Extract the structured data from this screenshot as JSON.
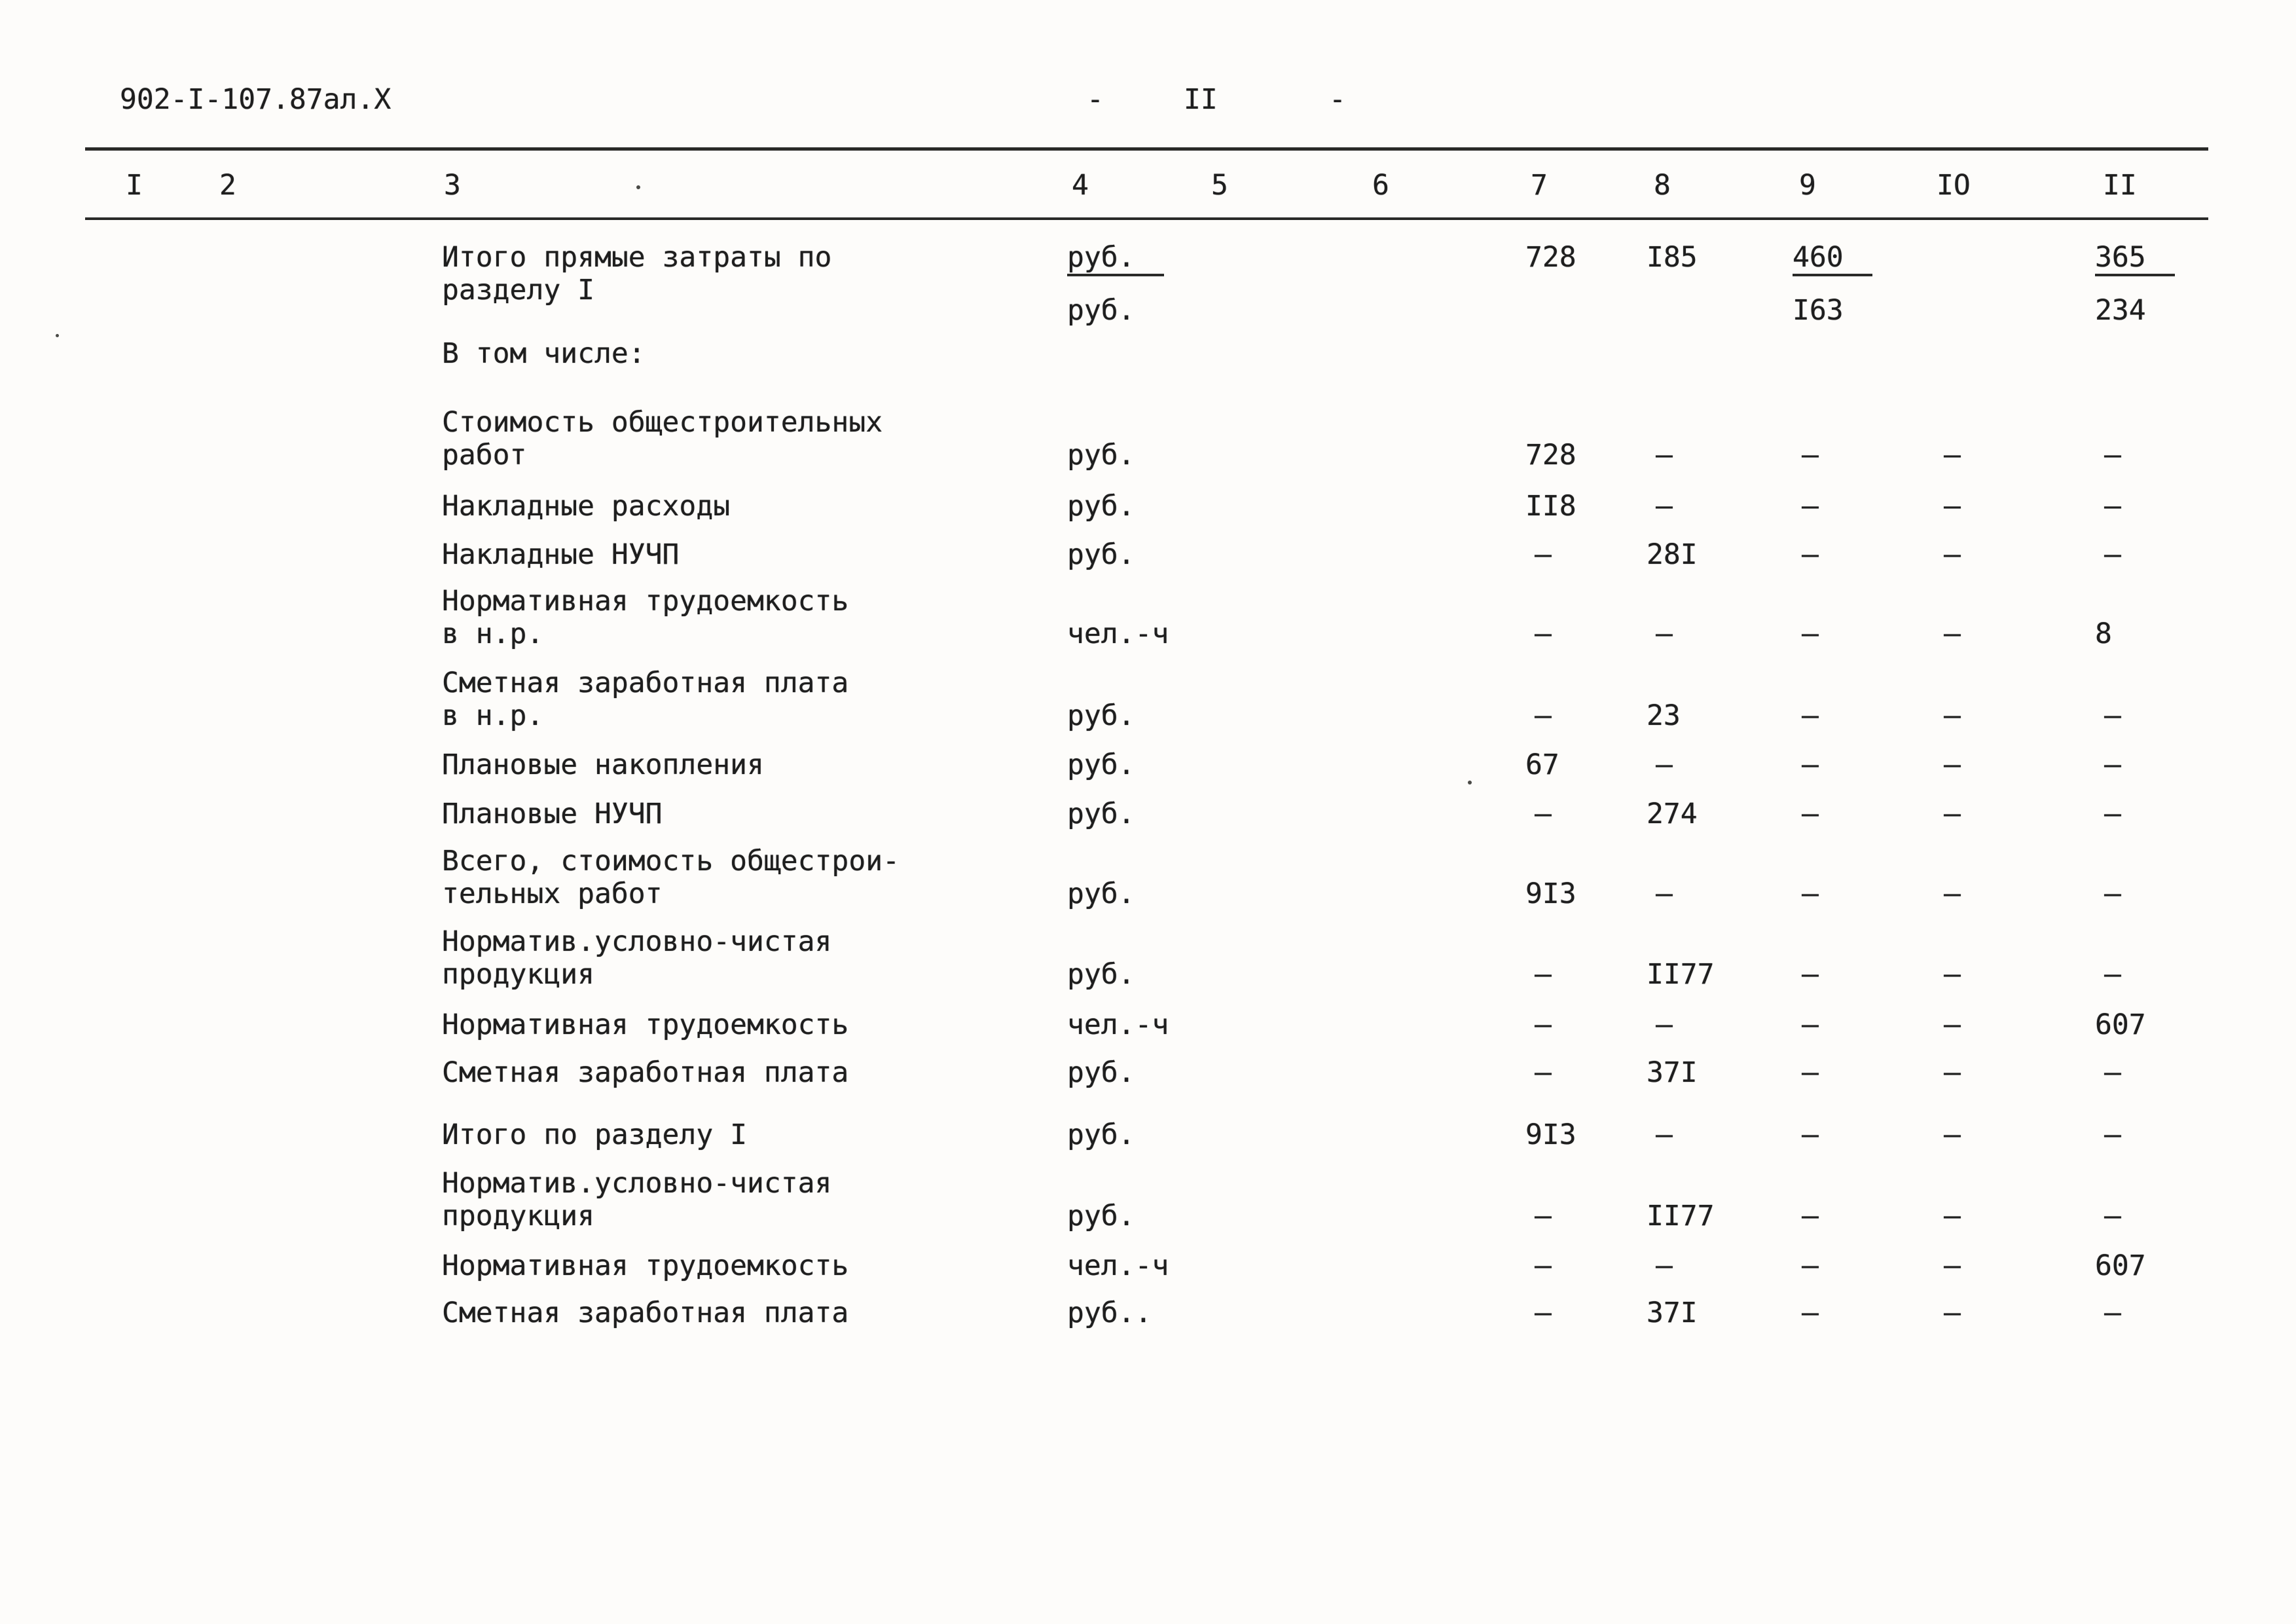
{
  "page": {
    "doc_code": "902-I-107.87ал.X",
    "dash_left": "-",
    "page_number": "II",
    "dash_right": "-"
  },
  "table": {
    "column_numbers": [
      "I",
      "2",
      "3",
      "4",
      "5",
      "6",
      "7",
      "8",
      "9",
      "IO",
      "II"
    ],
    "rows": [
      {
        "label": [
          "Итого прямые затраты по",
          "разделу I"
        ],
        "unit": [
          {
            "t": "руб.",
            "u": true
          },
          "руб."
        ],
        "c7": [
          "728"
        ],
        "c8": [
          "I85"
        ],
        "c9": [
          {
            "t": "460",
            "u": true
          },
          "I63"
        ],
        "c11": [
          {
            "t": "365",
            "u": true
          },
          "234"
        ]
      },
      {
        "label": [
          "В том числе:"
        ]
      },
      {
        "label": [
          "Стоимость общестроительных",
          "работ"
        ],
        "unit": [
          "руб."
        ],
        "c7": [
          "728"
        ],
        "c8": [
          "–"
        ],
        "c9": [
          "–"
        ],
        "c10": [
          "–"
        ],
        "c11": [
          "–"
        ]
      },
      {
        "label": [
          "Накладные расходы"
        ],
        "unit": [
          "руб."
        ],
        "c7": [
          "II8"
        ],
        "c8": [
          "–"
        ],
        "c9": [
          "–"
        ],
        "c10": [
          "–"
        ],
        "c11": [
          "–"
        ]
      },
      {
        "label": [
          "Накладные НУЧП"
        ],
        "unit": [
          "руб."
        ],
        "c7": [
          "–"
        ],
        "c8": [
          "28I"
        ],
        "c9": [
          "–"
        ],
        "c10": [
          "–"
        ],
        "c11": [
          "–"
        ]
      },
      {
        "label": [
          "Нормативная трудоемкость",
          "в н.р."
        ],
        "unit": [
          "чел.-ч"
        ],
        "c7": [
          "–"
        ],
        "c8": [
          "–"
        ],
        "c9": [
          "–"
        ],
        "c10": [
          "–"
        ],
        "c11": [
          "8"
        ]
      },
      {
        "label": [
          "Сметная заработная плата",
          "в н.р."
        ],
        "unit": [
          "руб."
        ],
        "c7": [
          "–"
        ],
        "c8": [
          "23"
        ],
        "c9": [
          "–"
        ],
        "c10": [
          "–"
        ],
        "c11": [
          "–"
        ]
      },
      {
        "label": [
          "Плановые накопления"
        ],
        "unit": [
          "руб."
        ],
        "c7": [
          "67"
        ],
        "c8": [
          "–"
        ],
        "c9": [
          "–"
        ],
        "c10": [
          "–"
        ],
        "c11": [
          "–"
        ]
      },
      {
        "label": [
          "Плановые НУЧП"
        ],
        "unit": [
          "руб."
        ],
        "c7": [
          "–"
        ],
        "c8": [
          "274"
        ],
        "c9": [
          "–"
        ],
        "c10": [
          "–"
        ],
        "c11": [
          "–"
        ]
      },
      {
        "label": [
          "Всего, стоимость общестрои-",
          "тельных работ"
        ],
        "unit": [
          "руб."
        ],
        "c7": [
          "9I3"
        ],
        "c8": [
          "–"
        ],
        "c9": [
          "–"
        ],
        "c10": [
          "–"
        ],
        "c11": [
          "–"
        ]
      },
      {
        "label": [
          "Норматив.условно-чистая",
          "продукция"
        ],
        "unit": [
          "руб."
        ],
        "c7": [
          "–"
        ],
        "c8": [
          "II77"
        ],
        "c9": [
          "–"
        ],
        "c10": [
          "–"
        ],
        "c11": [
          "–"
        ]
      },
      {
        "label": [
          "Нормативная трудоемкость"
        ],
        "unit": [
          "чел.-ч"
        ],
        "c7": [
          "–"
        ],
        "c8": [
          "–"
        ],
        "c9": [
          "–"
        ],
        "c10": [
          "–"
        ],
        "c11": [
          "607"
        ]
      },
      {
        "label": [
          "Сметная заработная плата"
        ],
        "unit": [
          "руб."
        ],
        "c7": [
          "–"
        ],
        "c8": [
          "37I"
        ],
        "c9": [
          "–"
        ],
        "c10": [
          "–"
        ],
        "c11": [
          "–"
        ]
      },
      {
        "label": [
          "Итого по разделу I"
        ],
        "unit": [
          "руб."
        ],
        "c7": [
          "9I3"
        ],
        "c8": [
          "–"
        ],
        "c9": [
          "–"
        ],
        "c10": [
          "–"
        ],
        "c11": [
          "–"
        ]
      },
      {
        "label": [
          "Норматив.условно-чистая",
          "продукция"
        ],
        "unit": [
          "руб."
        ],
        "c7": [
          "–"
        ],
        "c8": [
          "II77"
        ],
        "c9": [
          "–"
        ],
        "c10": [
          "–"
        ],
        "c11": [
          "–"
        ]
      },
      {
        "label": [
          "Нормативная трудоемкость"
        ],
        "unit": [
          "чел.-ч"
        ],
        "c7": [
          "–"
        ],
        "c8": [
          "–"
        ],
        "c9": [
          "–"
        ],
        "c10": [
          "–"
        ],
        "c11": [
          "607"
        ]
      },
      {
        "label": [
          "Сметная заработная плата"
        ],
        "unit": [
          "руб.."
        ],
        "c7": [
          "–"
        ],
        "c8": [
          "37I"
        ],
        "c9": [
          "–"
        ],
        "c10": [
          "–"
        ],
        "c11": [
          "–"
        ]
      }
    ]
  }
}
